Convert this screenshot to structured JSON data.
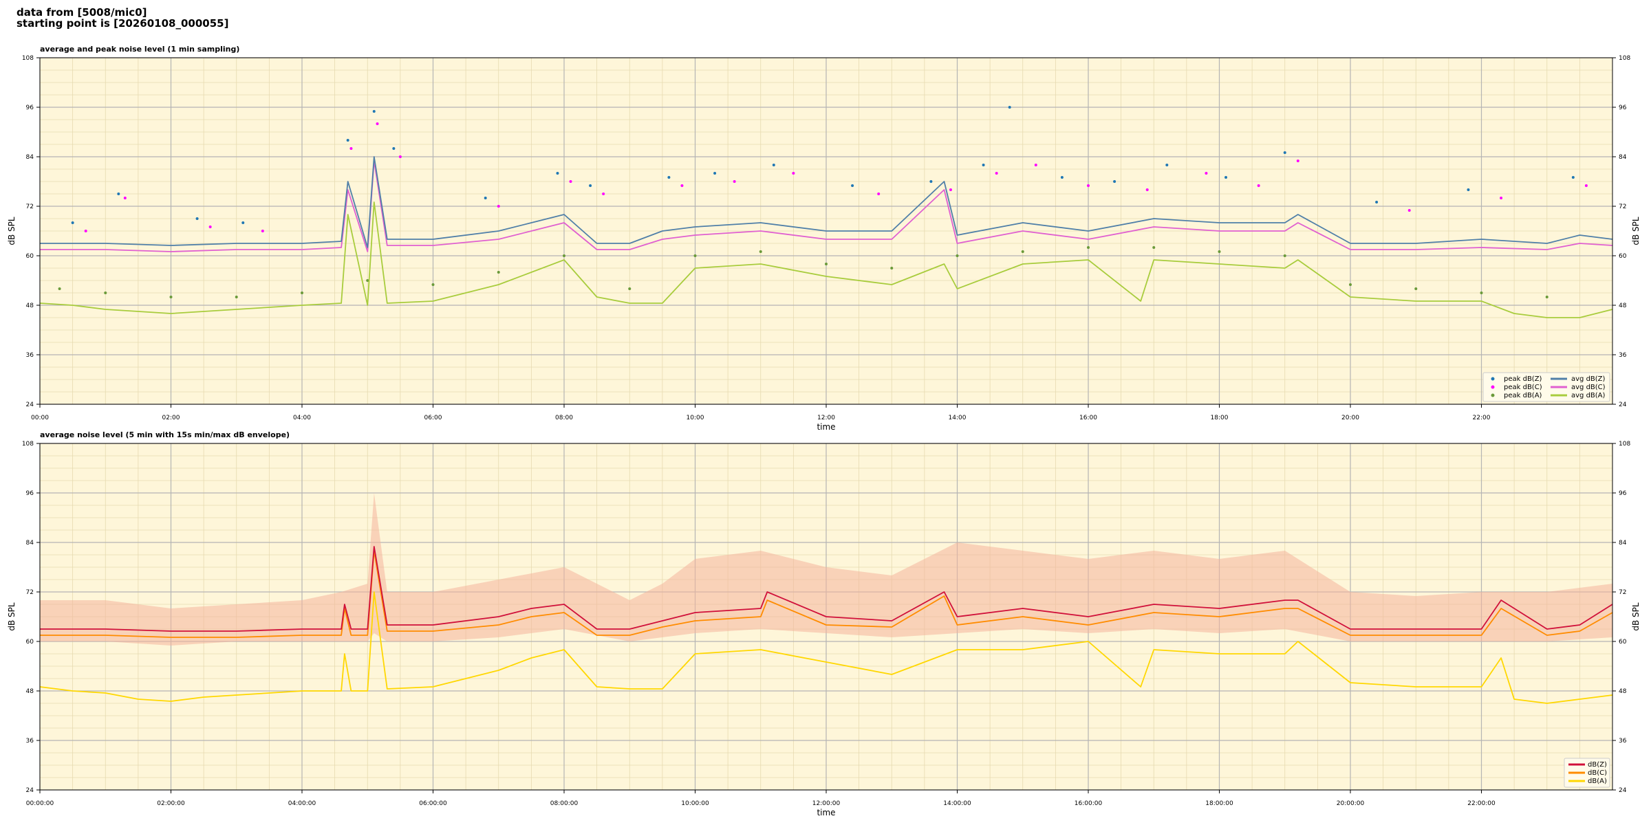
{
  "header": {
    "line1": "data from [5008/mic0]",
    "line2": "starting point is [20260108_000055]"
  },
  "colors": {
    "background": "#fef6d9",
    "peak_z": "#1f77b4",
    "peak_c": "#ff00ff",
    "peak_a": "#6a9a3a",
    "avg_z": "#4f7fa8",
    "avg_c": "#e060d0",
    "avg_a": "#a8cc3c",
    "db_z": "#d0103a",
    "db_c": "#ff8c00",
    "db_a": "#ffd700",
    "envelope": "#f4b49c"
  },
  "chart_data": [
    {
      "type": "line",
      "title": "average and peak noise level (1 min sampling)",
      "xlabel": "time",
      "ylabel": "dB SPL",
      "ylim": [
        24,
        108
      ],
      "xlim_hours": [
        0,
        24
      ],
      "x_tick_labels": [
        "00:00",
        "02:00",
        "04:00",
        "06:00",
        "08:00",
        "10:00",
        "12:00",
        "14:00",
        "16:00",
        "18:00",
        "20:00",
        "22:00"
      ],
      "y_ticks": [
        24,
        36,
        48,
        60,
        72,
        84,
        96,
        108
      ],
      "grid": true,
      "legend_position": "lower-right",
      "legend": [
        "peak dB(Z)",
        "peak dB(C)",
        "peak dB(A)",
        "avg dB(Z)",
        "avg dB(C)",
        "avg dB(A)"
      ],
      "series": [
        {
          "name": "avg dB(Z)",
          "kind": "line",
          "x_hours": [
            0,
            1,
            2,
            3,
            4,
            4.6,
            4.7,
            5.0,
            5.1,
            5.3,
            6,
            7,
            7.5,
            8,
            8.5,
            9,
            9.5,
            10,
            11,
            12,
            13,
            13.8,
            14,
            15,
            16,
            17,
            18,
            19,
            19.2,
            20,
            21,
            22,
            23,
            23.5,
            24
          ],
          "values": [
            63,
            63,
            62.5,
            63,
            63,
            63.5,
            78,
            62,
            84,
            64,
            64,
            66,
            68,
            70,
            63,
            63,
            66,
            67,
            68,
            66,
            66,
            78,
            65,
            68,
            66,
            69,
            68,
            68,
            70,
            63,
            63,
            64,
            63,
            65,
            64
          ]
        },
        {
          "name": "avg dB(C)",
          "kind": "line",
          "x_hours": [
            0,
            1,
            2,
            3,
            4,
            4.6,
            4.7,
            5.0,
            5.1,
            5.3,
            6,
            7,
            7.5,
            8,
            8.5,
            9,
            9.5,
            10,
            11,
            12,
            13,
            13.8,
            14,
            15,
            16,
            17,
            18,
            19,
            19.2,
            20,
            21,
            22,
            23,
            23.5,
            24
          ],
          "values": [
            61.5,
            61.5,
            61,
            61.5,
            61.5,
            62,
            76,
            61,
            83,
            62.5,
            62.5,
            64,
            66,
            68,
            61.5,
            61.5,
            64,
            65,
            66,
            64,
            64,
            76,
            63,
            66,
            64,
            67,
            66,
            66,
            68,
            61.5,
            61.5,
            62,
            61.5,
            63,
            62.5
          ]
        },
        {
          "name": "avg dB(A)",
          "kind": "line",
          "x_hours": [
            0,
            0.5,
            1,
            1.5,
            2,
            2.5,
            3,
            3.5,
            4,
            4.6,
            4.7,
            5.0,
            5.1,
            5.3,
            6,
            6.5,
            7,
            7.5,
            8,
            8.5,
            9,
            9.5,
            10,
            11,
            12,
            13,
            13.8,
            14,
            15,
            16,
            16.8,
            17,
            18,
            19,
            19.2,
            20,
            21,
            22,
            22.5,
            23,
            23.5,
            24
          ],
          "values": [
            48.5,
            48,
            47,
            46.5,
            46,
            46.5,
            47,
            47.5,
            48,
            48.5,
            70,
            48,
            73,
            48.5,
            49,
            51,
            53,
            56,
            59,
            50,
            48.5,
            48.5,
            57,
            58,
            55,
            53,
            58,
            52,
            58,
            59,
            49,
            59,
            58,
            57,
            59,
            50,
            49,
            49,
            46,
            45,
            45,
            47
          ]
        },
        {
          "name": "peak dB(Z)",
          "kind": "scatter",
          "x_hours": [
            0.5,
            1.2,
            2.4,
            3.1,
            4.7,
            5.1,
            5.4,
            6.8,
            7.9,
            8.4,
            9.6,
            10.3,
            11.2,
            12.4,
            13.6,
            14.4,
            14.8,
            15.6,
            16.4,
            17.2,
            18.1,
            19.0,
            20.4,
            21.8,
            23.4
          ],
          "values": [
            68,
            75,
            69,
            68,
            88,
            95,
            86,
            74,
            80,
            77,
            79,
            80,
            82,
            77,
            78,
            82,
            96,
            79,
            78,
            82,
            79,
            85,
            73,
            76,
            79
          ]
        },
        {
          "name": "peak dB(C)",
          "kind": "scatter",
          "x_hours": [
            0.7,
            1.3,
            2.6,
            3.4,
            4.75,
            5.15,
            5.5,
            7.0,
            8.1,
            8.6,
            9.8,
            10.6,
            11.5,
            12.8,
            13.9,
            14.6,
            15.2,
            16.0,
            16.9,
            17.8,
            18.6,
            19.2,
            20.9,
            22.3,
            23.6
          ],
          "values": [
            66,
            74,
            67,
            66,
            86,
            92,
            84,
            72,
            78,
            75,
            77,
            78,
            80,
            75,
            76,
            80,
            82,
            77,
            76,
            80,
            77,
            83,
            71,
            74,
            77
          ]
        },
        {
          "name": "peak dB(A)",
          "kind": "scatter",
          "x_hours": [
            0.3,
            1.0,
            2.0,
            3.0,
            4.0,
            5.0,
            6.0,
            7.0,
            8.0,
            9.0,
            10.0,
            11.0,
            12.0,
            13.0,
            14.0,
            15.0,
            16.0,
            17.0,
            18.0,
            19.0,
            20.0,
            21.0,
            22.0,
            23.0
          ],
          "values": [
            52,
            51,
            50,
            50,
            51,
            54,
            53,
            56,
            60,
            52,
            60,
            61,
            58,
            57,
            60,
            61,
            62,
            62,
            61,
            60,
            53,
            52,
            51,
            50
          ]
        }
      ]
    },
    {
      "type": "area",
      "title": "average noise level (5 min with 15s min/max dB envelope)",
      "xlabel": "time",
      "ylabel": "dB SPL",
      "ylim": [
        24,
        108
      ],
      "xlim_hours": [
        0,
        24
      ],
      "x_tick_labels": [
        "00:00:00",
        "02:00:00",
        "04:00:00",
        "06:00:00",
        "08:00:00",
        "10:00:00",
        "12:00:00",
        "14:00:00",
        "16:00:00",
        "18:00:00",
        "20:00:00",
        "22:00:00"
      ],
      "y_ticks": [
        24,
        36,
        48,
        60,
        72,
        84,
        96,
        108
      ],
      "grid": true,
      "legend_position": "lower-right",
      "legend": [
        "dB(Z)",
        "dB(C)",
        "dB(A)"
      ],
      "series": [
        {
          "name": "dB(Z)",
          "kind": "line",
          "x_hours": [
            0,
            1,
            2,
            3,
            4,
            4.6,
            4.65,
            4.75,
            5.0,
            5.1,
            5.3,
            6,
            7,
            7.5,
            8,
            8.5,
            9,
            9.5,
            10,
            11,
            11.1,
            12,
            13,
            13.8,
            14,
            15,
            16,
            17,
            18,
            19,
            19.2,
            20,
            21,
            22,
            22.3,
            23,
            23.5,
            24
          ],
          "values": [
            63,
            63,
            62.5,
            62.5,
            63,
            63,
            69,
            63,
            63,
            83,
            64,
            64,
            66,
            68,
            69,
            63,
            63,
            65,
            67,
            68,
            72,
            66,
            65,
            72,
            66,
            68,
            66,
            69,
            68,
            70,
            70,
            63,
            63,
            63,
            70,
            63,
            64,
            69
          ]
        },
        {
          "name": "dB(C)",
          "kind": "line",
          "x_hours": [
            0,
            1,
            2,
            3,
            4,
            4.6,
            4.65,
            4.75,
            5.0,
            5.1,
            5.3,
            6,
            7,
            7.5,
            8,
            8.5,
            9,
            9.5,
            10,
            11,
            11.1,
            12,
            13,
            13.8,
            14,
            15,
            16,
            17,
            18,
            19,
            19.2,
            20,
            21,
            22,
            22.3,
            23,
            23.5,
            24
          ],
          "values": [
            61.5,
            61.5,
            61,
            61,
            61.5,
            61.5,
            68,
            61.5,
            61.5,
            82,
            62.5,
            62.5,
            64,
            66,
            67,
            61.5,
            61.5,
            63.5,
            65,
            66,
            70,
            64,
            63.5,
            71,
            64,
            66,
            64,
            67,
            66,
            68,
            68,
            61.5,
            61.5,
            61.5,
            68,
            61.5,
            62.5,
            67
          ]
        },
        {
          "name": "dB(A)",
          "kind": "line",
          "x_hours": [
            0,
            0.5,
            1,
            1.5,
            2,
            2.5,
            3,
            3.5,
            4,
            4.6,
            4.65,
            4.75,
            5.0,
            5.1,
            5.3,
            6,
            6.5,
            7,
            7.5,
            8,
            8.5,
            9,
            9.5,
            10,
            11,
            12,
            13,
            14,
            15,
            16,
            16.8,
            17,
            18,
            19,
            19.2,
            20,
            21,
            22,
            22.3,
            22.5,
            23,
            23.5,
            24
          ],
          "values": [
            49,
            48,
            47.5,
            46,
            45.5,
            46.5,
            47,
            47.5,
            48,
            48,
            57,
            48,
            48,
            72,
            48.5,
            49,
            51,
            53,
            56,
            58,
            49,
            48.5,
            48.5,
            57,
            58,
            55,
            52,
            58,
            58,
            60,
            49,
            58,
            57,
            57,
            60,
            50,
            49,
            49,
            56,
            46,
            45,
            46,
            47
          ]
        },
        {
          "name": "envelope",
          "kind": "band",
          "x_hours": [
            0,
            1,
            2,
            3,
            4,
            4.6,
            5.0,
            5.1,
            5.3,
            6,
            7,
            8,
            9,
            9.5,
            10,
            11,
            12,
            13,
            14,
            15,
            16,
            17,
            18,
            19,
            20,
            21,
            22,
            23,
            24
          ],
          "max_values": [
            70,
            70,
            68,
            69,
            70,
            72,
            74,
            96,
            72,
            72,
            75,
            78,
            70,
            74,
            80,
            82,
            78,
            76,
            84,
            82,
            80,
            82,
            80,
            82,
            72,
            71,
            72,
            72,
            74
          ],
          "min_values": [
            60,
            60,
            59,
            60,
            60,
            60,
            60,
            62,
            60,
            60,
            61,
            63,
            60,
            61,
            62,
            63,
            62,
            61,
            62,
            63,
            62,
            63,
            62,
            63,
            60,
            60,
            60,
            60,
            61
          ]
        }
      ]
    }
  ]
}
